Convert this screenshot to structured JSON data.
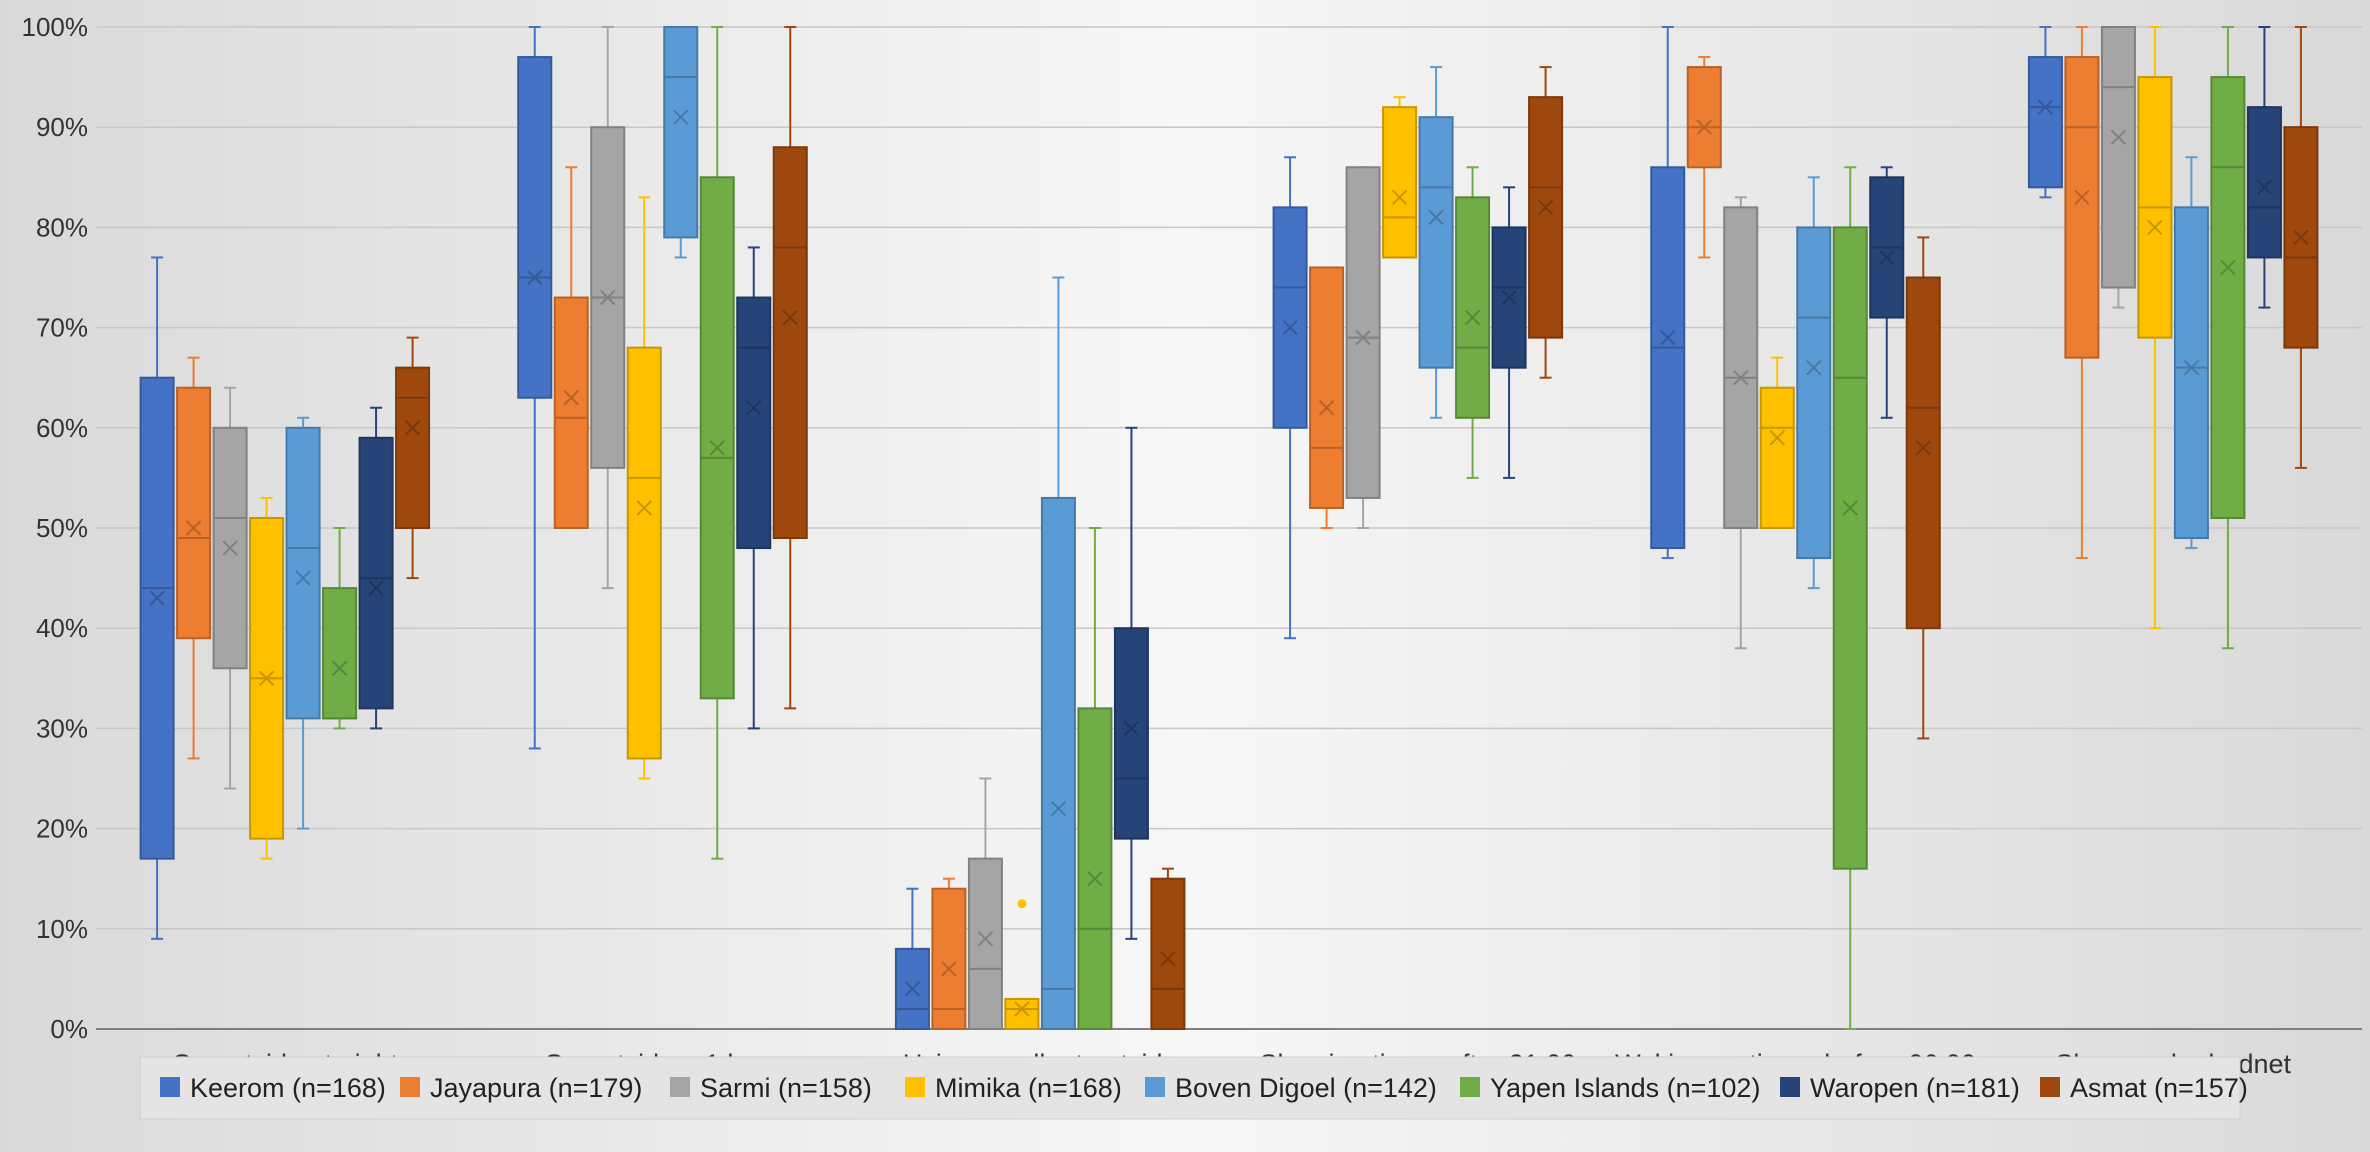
{
  "chart_data": {
    "type": "box",
    "title": "",
    "xlabel": "",
    "ylabel": "",
    "ylim": [
      0,
      100
    ],
    "y_ticks": [
      "0%",
      "10%",
      "20%",
      "30%",
      "40%",
      "50%",
      "60%",
      "70%",
      "80%",
      "90%",
      "100%"
    ],
    "grid": true,
    "legend_position": "bottom",
    "categories": [
      "Go outside at night",
      "Go outside > 1 hour",
      "Using repellent outside",
      "Sleeping time - after 21.00",
      "Waking up time - before 06.00",
      "Sleep under bednet"
    ],
    "series": [
      {
        "name": "Keerom (n=168)",
        "color": "#4472C4",
        "boxes": [
          {
            "min": 9,
            "q1": 17,
            "median": 44,
            "q3": 65,
            "max": 77,
            "mean": 43
          },
          {
            "min": 28,
            "q1": 63,
            "median": 75,
            "q3": 97,
            "max": 100,
            "mean": 75
          },
          {
            "min": 0,
            "q1": 0,
            "median": 2,
            "q3": 8,
            "max": 14,
            "mean": 4
          },
          {
            "min": 39,
            "q1": 60,
            "median": 74,
            "q3": 82,
            "max": 87,
            "mean": 70
          },
          {
            "min": 47,
            "q1": 48,
            "median": 68,
            "q3": 86,
            "max": 100,
            "mean": 69
          },
          {
            "min": 83,
            "q1": 84,
            "median": 92,
            "q3": 97,
            "max": 100,
            "mean": 92
          }
        ]
      },
      {
        "name": "Jayapura (n=179)",
        "color": "#ED7D31",
        "boxes": [
          {
            "min": 27,
            "q1": 39,
            "median": 49,
            "q3": 64,
            "max": 67,
            "mean": 50
          },
          {
            "min": 50,
            "q1": 50,
            "median": 61,
            "q3": 73,
            "max": 86,
            "mean": 63
          },
          {
            "min": 0,
            "q1": 0,
            "median": 2,
            "q3": 14,
            "max": 15,
            "mean": 6
          },
          {
            "min": 50,
            "q1": 52,
            "median": 58,
            "q3": 76,
            "max": 76,
            "mean": 62
          },
          {
            "min": 77,
            "q1": 86,
            "median": 90,
            "q3": 96,
            "max": 97,
            "mean": 90
          },
          {
            "min": 47,
            "q1": 67,
            "median": 90,
            "q3": 97,
            "max": 100,
            "mean": 83
          }
        ]
      },
      {
        "name": "Sarmi (n=158)",
        "color": "#A5A5A5",
        "boxes": [
          {
            "min": 24,
            "q1": 36,
            "median": 51,
            "q3": 60,
            "max": 64,
            "mean": 48
          },
          {
            "min": 44,
            "q1": 56,
            "median": 73,
            "q3": 90,
            "max": 100,
            "mean": 73
          },
          {
            "min": 0,
            "q1": 0,
            "median": 6,
            "q3": 17,
            "max": 25,
            "mean": 9
          },
          {
            "min": 50,
            "q1": 53,
            "median": 69,
            "q3": 86,
            "max": 86,
            "mean": 69
          },
          {
            "min": 38,
            "q1": 50,
            "median": 65,
            "q3": 82,
            "max": 83,
            "mean": 65
          },
          {
            "min": 72,
            "q1": 74,
            "median": 94,
            "q3": 100,
            "max": 100,
            "mean": 89
          }
        ]
      },
      {
        "name": "Mimika (n=168)",
        "color": "#FFC000",
        "boxes": [
          {
            "min": 17,
            "q1": 19,
            "median": 35,
            "q3": 51,
            "max": 53,
            "mean": 35
          },
          {
            "min": 25,
            "q1": 27,
            "median": 55,
            "q3": 68,
            "max": 83,
            "mean": 52
          },
          {
            "min": 0,
            "q1": 0,
            "median": 2,
            "q3": 3,
            "max": 3,
            "mean": 2,
            "outliers": [
              12.5
            ]
          },
          {
            "min": 77,
            "q1": 77,
            "median": 81,
            "q3": 92,
            "max": 93,
            "mean": 83
          },
          {
            "min": 50,
            "q1": 50,
            "median": 60,
            "q3": 64,
            "max": 67,
            "mean": 59
          },
          {
            "min": 40,
            "q1": 69,
            "median": 82,
            "q3": 95,
            "max": 100,
            "mean": 80
          }
        ]
      },
      {
        "name": "Boven Digoel (n=142)",
        "color": "#5B9BD5",
        "boxes": [
          {
            "min": 20,
            "q1": 31,
            "median": 48,
            "q3": 60,
            "max": 61,
            "mean": 45
          },
          {
            "min": 77,
            "q1": 79,
            "median": 95,
            "q3": 100,
            "max": 100,
            "mean": 91
          },
          {
            "min": 0,
            "q1": 0,
            "median": 4,
            "q3": 53,
            "max": 75,
            "mean": 22
          },
          {
            "min": 61,
            "q1": 66,
            "median": 84,
            "q3": 91,
            "max": 96,
            "mean": 81
          },
          {
            "min": 44,
            "q1": 47,
            "median": 71,
            "q3": 80,
            "max": 85,
            "mean": 66
          },
          {
            "min": 48,
            "q1": 49,
            "median": 66,
            "q3": 82,
            "max": 87,
            "mean": 66
          }
        ]
      },
      {
        "name": "Yapen Islands (n=102)",
        "color": "#70AD47",
        "boxes": [
          {
            "min": 30,
            "q1": 31,
            "median": 31,
            "q3": 44,
            "max": 50,
            "mean": 36
          },
          {
            "min": 17,
            "q1": 33,
            "median": 57,
            "q3": 85,
            "max": 100,
            "mean": 58
          },
          {
            "min": 0,
            "q1": 0,
            "median": 10,
            "q3": 32,
            "max": 50,
            "mean": 15
          },
          {
            "min": 55,
            "q1": 61,
            "median": 68,
            "q3": 83,
            "max": 86,
            "mean": 71
          },
          {
            "min": 0,
            "q1": 16,
            "median": 65,
            "q3": 80,
            "max": 86,
            "mean": 52
          },
          {
            "min": 38,
            "q1": 51,
            "median": 86,
            "q3": 95,
            "max": 100,
            "mean": 76
          }
        ]
      },
      {
        "name": "Waropen (n=181)",
        "color": "#264478",
        "boxes": [
          {
            "min": 30,
            "q1": 32,
            "median": 45,
            "q3": 59,
            "max": 62,
            "mean": 44
          },
          {
            "min": 30,
            "q1": 48,
            "median": 68,
            "q3": 73,
            "max": 78,
            "mean": 62
          },
          {
            "min": 9,
            "q1": 19,
            "median": 25,
            "q3": 40,
            "max": 60,
            "mean": 30
          },
          {
            "min": 55,
            "q1": 66,
            "median": 74,
            "q3": 80,
            "max": 84,
            "mean": 73
          },
          {
            "min": 61,
            "q1": 71,
            "median": 78,
            "q3": 85,
            "max": 86,
            "mean": 77
          },
          {
            "min": 72,
            "q1": 77,
            "median": 82,
            "q3": 92,
            "max": 100,
            "mean": 84
          }
        ]
      },
      {
        "name": "Asmat (n=157)",
        "color": "#9E480E",
        "boxes": [
          {
            "min": 45,
            "q1": 50,
            "median": 63,
            "q3": 66,
            "max": 69,
            "mean": 60
          },
          {
            "min": 32,
            "q1": 49,
            "median": 78,
            "q3": 88,
            "max": 100,
            "mean": 71
          },
          {
            "min": 0,
            "q1": 0,
            "median": 4,
            "q3": 15,
            "max": 16,
            "mean": 7
          },
          {
            "min": 65,
            "q1": 69,
            "median": 84,
            "q3": 93,
            "max": 96,
            "mean": 82
          },
          {
            "min": 29,
            "q1": 40,
            "median": 62,
            "q3": 75,
            "max": 79,
            "mean": 58
          },
          {
            "min": 56,
            "q1": 68,
            "median": 77,
            "q3": 90,
            "max": 100,
            "mean": 79
          }
        ]
      }
    ]
  }
}
